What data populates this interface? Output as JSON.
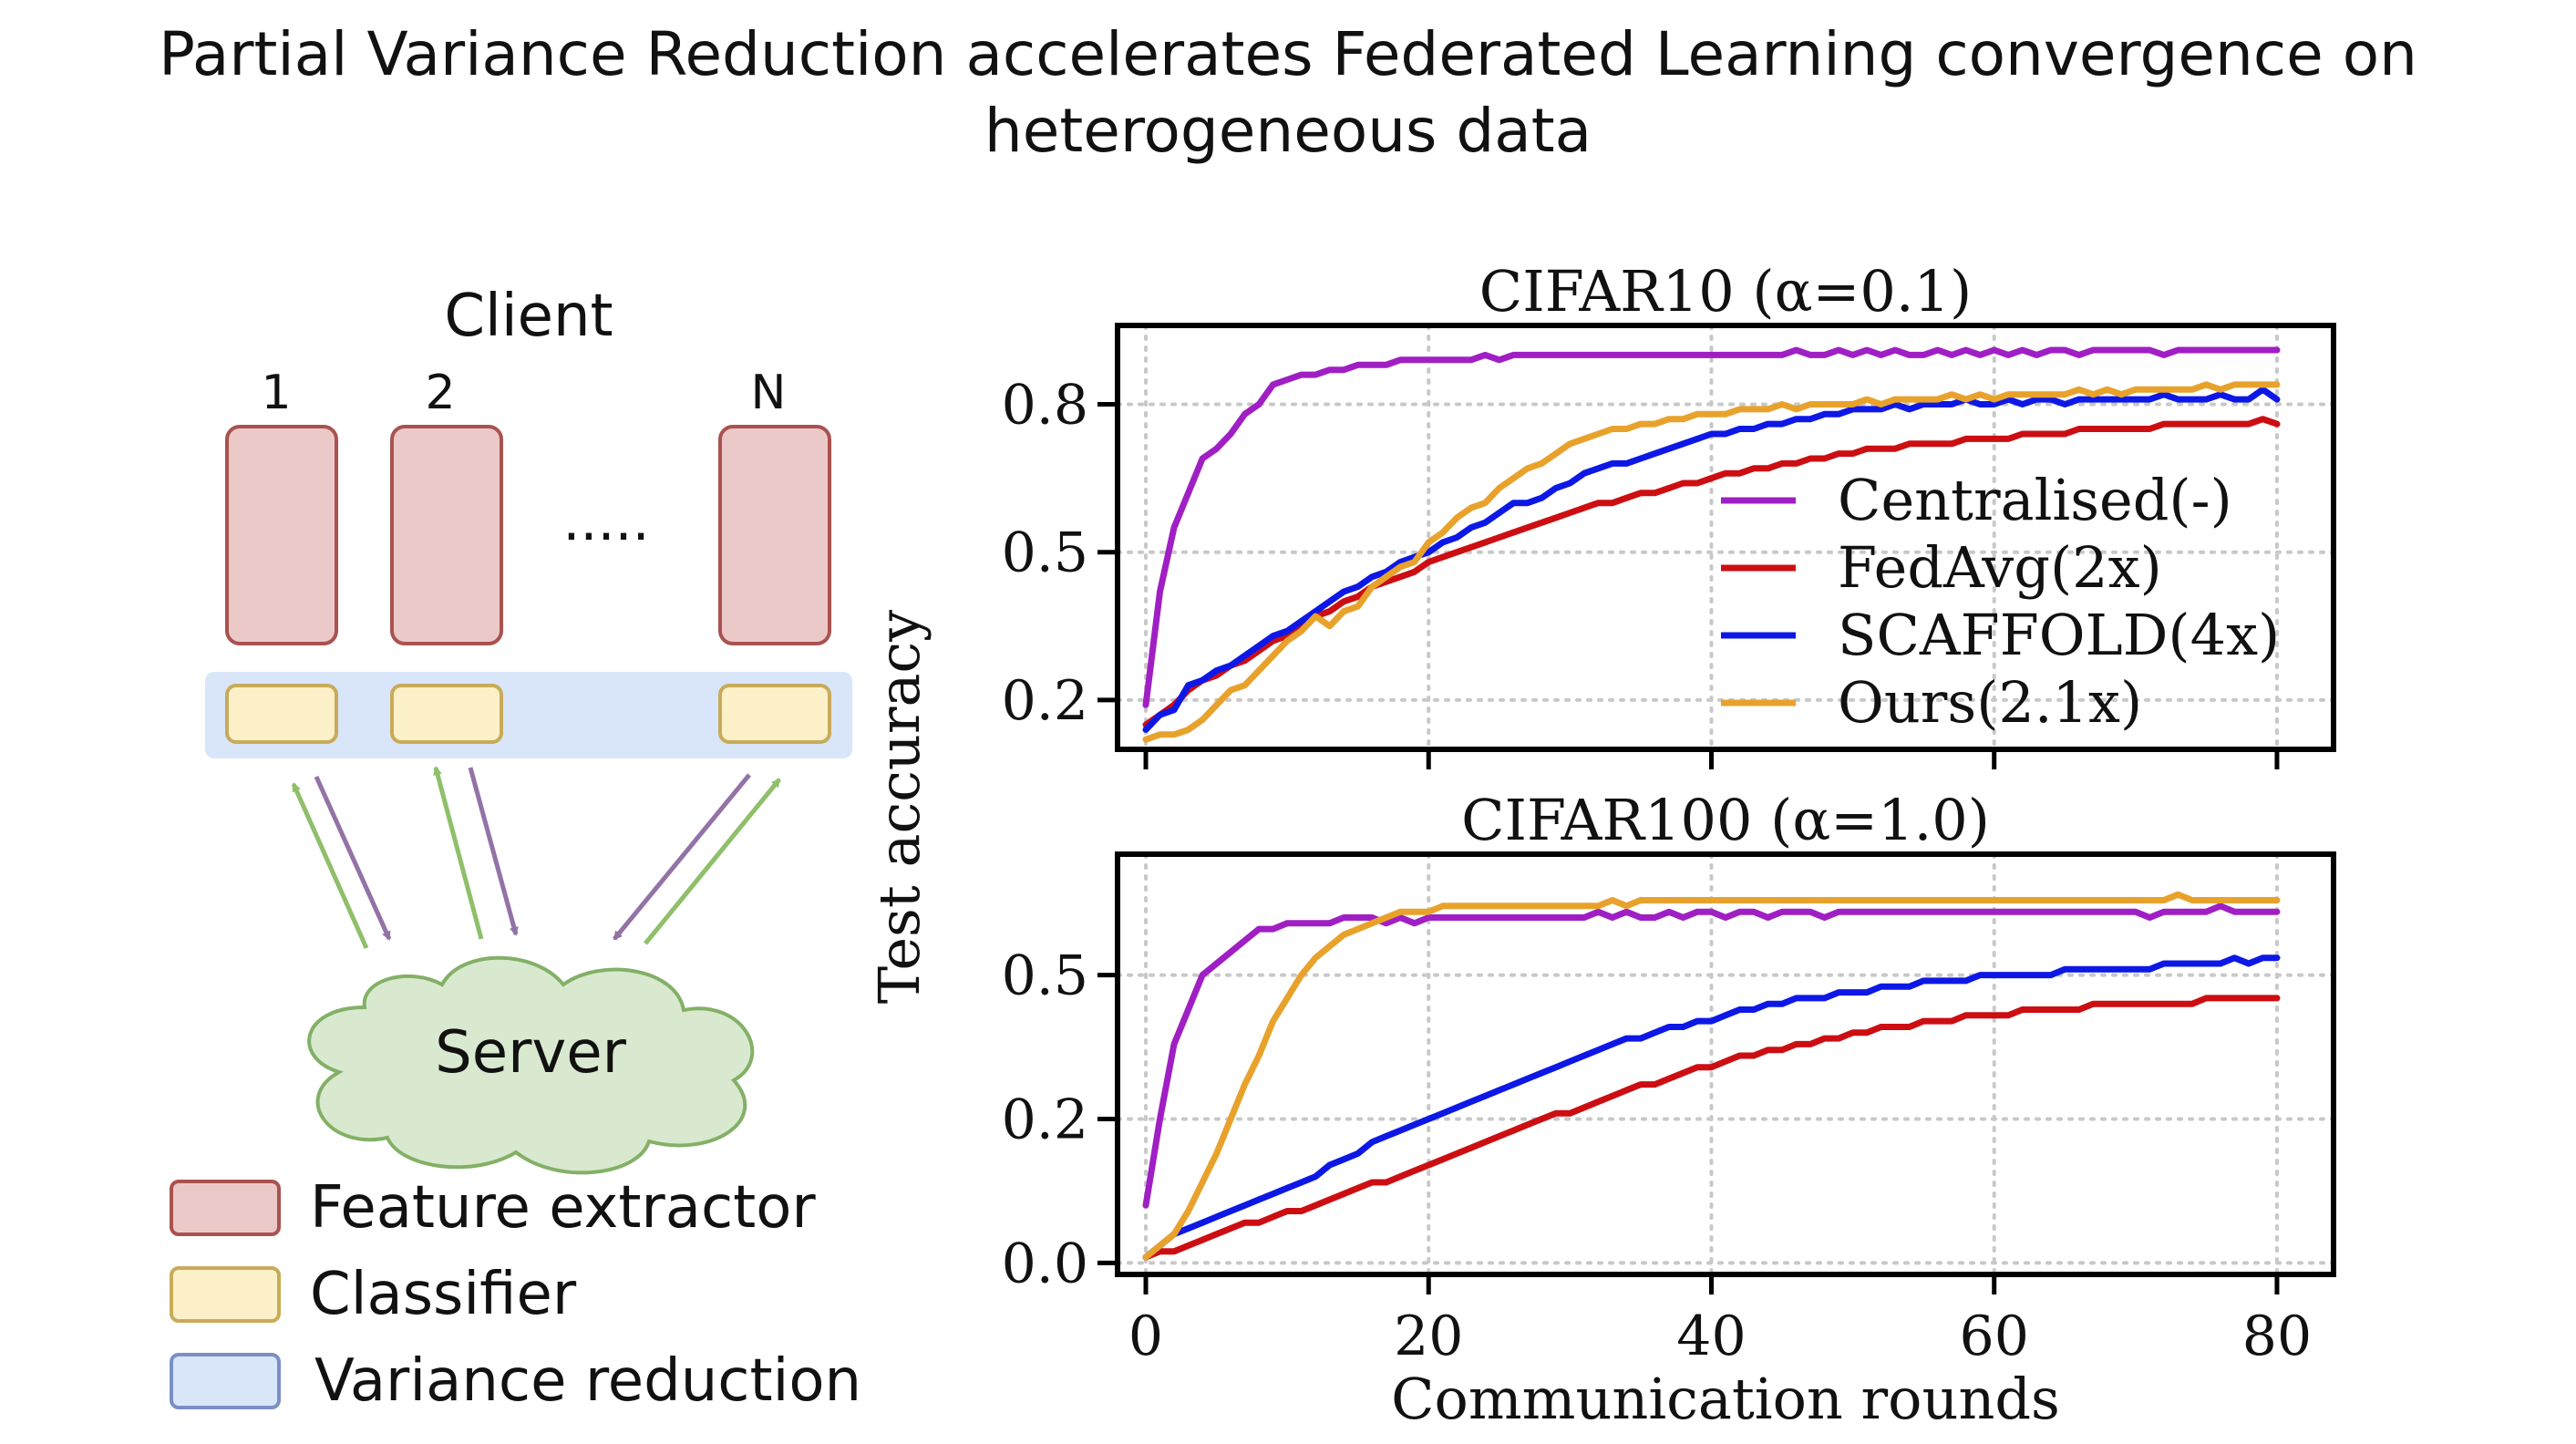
{
  "title_line1": "Partial Variance Reduction accelerates Federated Learning convergence on",
  "title_line2": "heterogeneous data",
  "diagram": {
    "client_label": "Client",
    "client_ids": [
      "1",
      "2",
      "N"
    ],
    "ellipsis": ".....",
    "server_label": "Server",
    "legend": [
      {
        "label": "Feature extractor",
        "fill": "#ecc9c9",
        "stroke": "#a9524f"
      },
      {
        "label": "Classifier",
        "fill": "#fbf0c8",
        "stroke": "#c8ab5a"
      },
      {
        "label": "Variance reduction",
        "fill": "#d9e6f9",
        "stroke": "#7a8fc4"
      }
    ],
    "colors": {
      "server_fill": "#d8e9cf",
      "server_stroke": "#83b066",
      "arrow_up": "#8fbf6a",
      "arrow_down": "#9373a6"
    }
  },
  "shared": {
    "ylabel": "Test accuracy",
    "xlabel": "Communication rounds",
    "xticks": [
      0,
      20,
      40,
      60,
      80
    ],
    "xlim": [
      -2,
      84
    ]
  },
  "chart_data": [
    {
      "type": "line",
      "title": "CIFAR10 (α=0.1)",
      "xlim": [
        -2,
        84
      ],
      "ylim": [
        0.1,
        0.96
      ],
      "yticks": [
        0.2,
        0.5,
        0.8
      ],
      "ytick_labels": [
        "0.2",
        "0.5",
        "0.8"
      ],
      "grid": true,
      "legend_placement": "lower-right",
      "x": [
        0,
        1,
        2,
        3,
        4,
        5,
        6,
        7,
        8,
        9,
        10,
        11,
        12,
        13,
        14,
        15,
        16,
        17,
        18,
        19,
        20,
        21,
        22,
        23,
        24,
        25,
        26,
        27,
        28,
        29,
        30,
        31,
        32,
        33,
        34,
        35,
        36,
        37,
        38,
        39,
        40,
        41,
        42,
        43,
        44,
        45,
        46,
        47,
        48,
        49,
        50,
        51,
        52,
        53,
        54,
        55,
        56,
        57,
        58,
        59,
        60,
        61,
        62,
        63,
        64,
        65,
        66,
        67,
        68,
        69,
        70,
        71,
        72,
        73,
        74,
        75,
        76,
        77,
        78,
        79,
        80
      ],
      "series": [
        {
          "name": "Centralised(-)",
          "color": "#a01fc4",
          "values": [
            0.19,
            0.42,
            0.55,
            0.62,
            0.69,
            0.71,
            0.74,
            0.78,
            0.8,
            0.84,
            0.85,
            0.86,
            0.86,
            0.87,
            0.87,
            0.88,
            0.88,
            0.88,
            0.89,
            0.89,
            0.89,
            0.89,
            0.89,
            0.89,
            0.9,
            0.89,
            0.9,
            0.9,
            0.9,
            0.9,
            0.9,
            0.9,
            0.9,
            0.9,
            0.9,
            0.9,
            0.9,
            0.9,
            0.9,
            0.9,
            0.9,
            0.9,
            0.9,
            0.9,
            0.9,
            0.9,
            0.91,
            0.9,
            0.9,
            0.91,
            0.9,
            0.91,
            0.9,
            0.91,
            0.9,
            0.9,
            0.91,
            0.9,
            0.91,
            0.9,
            0.91,
            0.9,
            0.91,
            0.9,
            0.91,
            0.91,
            0.9,
            0.91,
            0.91,
            0.91,
            0.91,
            0.91,
            0.9,
            0.91,
            0.91,
            0.91,
            0.91,
            0.91,
            0.91,
            0.91,
            0.91
          ]
        },
        {
          "name": "FedAvg(2x)",
          "color": "#cc0e12",
          "values": [
            0.15,
            0.17,
            0.19,
            0.22,
            0.24,
            0.25,
            0.27,
            0.28,
            0.3,
            0.32,
            0.33,
            0.35,
            0.37,
            0.38,
            0.4,
            0.41,
            0.43,
            0.44,
            0.45,
            0.46,
            0.48,
            0.49,
            0.5,
            0.51,
            0.52,
            0.53,
            0.54,
            0.55,
            0.56,
            0.57,
            0.58,
            0.59,
            0.6,
            0.6,
            0.61,
            0.62,
            0.62,
            0.63,
            0.64,
            0.64,
            0.65,
            0.66,
            0.66,
            0.67,
            0.67,
            0.68,
            0.68,
            0.69,
            0.69,
            0.7,
            0.7,
            0.71,
            0.71,
            0.71,
            0.72,
            0.72,
            0.72,
            0.72,
            0.73,
            0.73,
            0.73,
            0.73,
            0.74,
            0.74,
            0.74,
            0.74,
            0.75,
            0.75,
            0.75,
            0.75,
            0.75,
            0.75,
            0.76,
            0.76,
            0.76,
            0.76,
            0.76,
            0.76,
            0.76,
            0.77,
            0.76
          ]
        },
        {
          "name": "SCAFFOLD(4x)",
          "color": "#0d18e6",
          "values": [
            0.14,
            0.17,
            0.18,
            0.23,
            0.24,
            0.26,
            0.27,
            0.29,
            0.31,
            0.33,
            0.34,
            0.36,
            0.38,
            0.4,
            0.42,
            0.43,
            0.45,
            0.46,
            0.48,
            0.49,
            0.5,
            0.52,
            0.53,
            0.55,
            0.56,
            0.58,
            0.6,
            0.6,
            0.61,
            0.63,
            0.64,
            0.66,
            0.67,
            0.68,
            0.68,
            0.69,
            0.7,
            0.71,
            0.72,
            0.73,
            0.74,
            0.74,
            0.75,
            0.75,
            0.76,
            0.76,
            0.77,
            0.77,
            0.78,
            0.78,
            0.79,
            0.79,
            0.79,
            0.8,
            0.79,
            0.8,
            0.8,
            0.8,
            0.81,
            0.8,
            0.8,
            0.81,
            0.8,
            0.81,
            0.81,
            0.8,
            0.81,
            0.81,
            0.81,
            0.81,
            0.81,
            0.81,
            0.82,
            0.81,
            0.81,
            0.81,
            0.82,
            0.81,
            0.81,
            0.83,
            0.81
          ]
        },
        {
          "name": "Ours(2.1x)",
          "color": "#e8a22c",
          "values": [
            0.12,
            0.13,
            0.13,
            0.14,
            0.16,
            0.19,
            0.22,
            0.23,
            0.26,
            0.29,
            0.32,
            0.34,
            0.37,
            0.35,
            0.38,
            0.39,
            0.43,
            0.45,
            0.47,
            0.48,
            0.52,
            0.54,
            0.57,
            0.59,
            0.6,
            0.63,
            0.65,
            0.67,
            0.68,
            0.7,
            0.72,
            0.73,
            0.74,
            0.75,
            0.75,
            0.76,
            0.76,
            0.77,
            0.77,
            0.78,
            0.78,
            0.78,
            0.79,
            0.79,
            0.79,
            0.8,
            0.79,
            0.8,
            0.8,
            0.8,
            0.8,
            0.81,
            0.8,
            0.81,
            0.81,
            0.81,
            0.81,
            0.82,
            0.81,
            0.82,
            0.81,
            0.82,
            0.82,
            0.82,
            0.82,
            0.82,
            0.83,
            0.82,
            0.83,
            0.82,
            0.83,
            0.83,
            0.83,
            0.83,
            0.83,
            0.84,
            0.83,
            0.84,
            0.84,
            0.84,
            0.84
          ]
        }
      ]
    },
    {
      "type": "line",
      "title": "CIFAR100 (α=1.0)",
      "xlim": [
        -2,
        84
      ],
      "ylim": [
        -0.02,
        0.71
      ],
      "yticks": [
        0.0,
        0.25,
        0.5
      ],
      "ytick_labels": [
        "0.0",
        "0.2",
        "0.5"
      ],
      "grid": true,
      "x": [
        0,
        1,
        2,
        3,
        4,
        5,
        6,
        7,
        8,
        9,
        10,
        11,
        12,
        13,
        14,
        15,
        16,
        17,
        18,
        19,
        20,
        21,
        22,
        23,
        24,
        25,
        26,
        27,
        28,
        29,
        30,
        31,
        32,
        33,
        34,
        35,
        36,
        37,
        38,
        39,
        40,
        41,
        42,
        43,
        44,
        45,
        46,
        47,
        48,
        49,
        50,
        51,
        52,
        53,
        54,
        55,
        56,
        57,
        58,
        59,
        60,
        61,
        62,
        63,
        64,
        65,
        66,
        67,
        68,
        69,
        70,
        71,
        72,
        73,
        74,
        75,
        76,
        77,
        78,
        79,
        80
      ],
      "series": [
        {
          "name": "Centralised(-)",
          "color": "#a01fc4",
          "values": [
            0.1,
            0.25,
            0.38,
            0.44,
            0.5,
            0.52,
            0.54,
            0.56,
            0.58,
            0.58,
            0.59,
            0.59,
            0.59,
            0.59,
            0.6,
            0.6,
            0.6,
            0.59,
            0.6,
            0.59,
            0.6,
            0.6,
            0.6,
            0.6,
            0.6,
            0.6,
            0.6,
            0.6,
            0.6,
            0.6,
            0.6,
            0.6,
            0.61,
            0.6,
            0.61,
            0.6,
            0.6,
            0.61,
            0.6,
            0.61,
            0.61,
            0.6,
            0.61,
            0.61,
            0.6,
            0.61,
            0.61,
            0.61,
            0.6,
            0.61,
            0.61,
            0.61,
            0.61,
            0.61,
            0.61,
            0.61,
            0.61,
            0.61,
            0.61,
            0.61,
            0.61,
            0.61,
            0.61,
            0.61,
            0.61,
            0.61,
            0.61,
            0.61,
            0.61,
            0.61,
            0.61,
            0.6,
            0.61,
            0.61,
            0.61,
            0.61,
            0.62,
            0.61,
            0.61,
            0.61,
            0.61
          ]
        },
        {
          "name": "FedAvg(2x)",
          "color": "#cc0e12",
          "values": [
            0.01,
            0.02,
            0.02,
            0.03,
            0.04,
            0.05,
            0.06,
            0.07,
            0.07,
            0.08,
            0.09,
            0.09,
            0.1,
            0.11,
            0.12,
            0.13,
            0.14,
            0.14,
            0.15,
            0.16,
            0.17,
            0.18,
            0.19,
            0.2,
            0.21,
            0.22,
            0.23,
            0.24,
            0.25,
            0.26,
            0.26,
            0.27,
            0.28,
            0.29,
            0.3,
            0.31,
            0.31,
            0.32,
            0.33,
            0.34,
            0.34,
            0.35,
            0.36,
            0.36,
            0.37,
            0.37,
            0.38,
            0.38,
            0.39,
            0.39,
            0.4,
            0.4,
            0.41,
            0.41,
            0.41,
            0.42,
            0.42,
            0.42,
            0.43,
            0.43,
            0.43,
            0.43,
            0.44,
            0.44,
            0.44,
            0.44,
            0.44,
            0.45,
            0.45,
            0.45,
            0.45,
            0.45,
            0.45,
            0.45,
            0.45,
            0.46,
            0.46,
            0.46,
            0.46,
            0.46,
            0.46
          ]
        },
        {
          "name": "SCAFFOLD(4x)",
          "color": "#0d18e6",
          "values": [
            0.01,
            0.03,
            0.05,
            0.06,
            0.07,
            0.08,
            0.09,
            0.1,
            0.11,
            0.12,
            0.13,
            0.14,
            0.15,
            0.17,
            0.18,
            0.19,
            0.21,
            0.22,
            0.23,
            0.24,
            0.25,
            0.26,
            0.27,
            0.28,
            0.29,
            0.3,
            0.31,
            0.32,
            0.33,
            0.34,
            0.35,
            0.36,
            0.37,
            0.38,
            0.39,
            0.39,
            0.4,
            0.41,
            0.41,
            0.42,
            0.42,
            0.43,
            0.44,
            0.44,
            0.45,
            0.45,
            0.46,
            0.46,
            0.46,
            0.47,
            0.47,
            0.47,
            0.48,
            0.48,
            0.48,
            0.49,
            0.49,
            0.49,
            0.49,
            0.5,
            0.5,
            0.5,
            0.5,
            0.5,
            0.5,
            0.51,
            0.51,
            0.51,
            0.51,
            0.51,
            0.51,
            0.51,
            0.52,
            0.52,
            0.52,
            0.52,
            0.52,
            0.53,
            0.52,
            0.53,
            0.53
          ]
        },
        {
          "name": "Ours(2.1x)",
          "color": "#e8a22c",
          "values": [
            0.01,
            0.03,
            0.05,
            0.09,
            0.14,
            0.19,
            0.25,
            0.31,
            0.36,
            0.42,
            0.46,
            0.5,
            0.53,
            0.55,
            0.57,
            0.58,
            0.59,
            0.6,
            0.61,
            0.61,
            0.61,
            0.62,
            0.62,
            0.62,
            0.62,
            0.62,
            0.62,
            0.62,
            0.62,
            0.62,
            0.62,
            0.62,
            0.62,
            0.63,
            0.62,
            0.63,
            0.63,
            0.63,
            0.63,
            0.63,
            0.63,
            0.63,
            0.63,
            0.63,
            0.63,
            0.63,
            0.63,
            0.63,
            0.63,
            0.63,
            0.63,
            0.63,
            0.63,
            0.63,
            0.63,
            0.63,
            0.63,
            0.63,
            0.63,
            0.63,
            0.63,
            0.63,
            0.63,
            0.63,
            0.63,
            0.63,
            0.63,
            0.63,
            0.63,
            0.63,
            0.63,
            0.63,
            0.63,
            0.64,
            0.63,
            0.63,
            0.63,
            0.63,
            0.63,
            0.63,
            0.63
          ]
        }
      ]
    }
  ]
}
